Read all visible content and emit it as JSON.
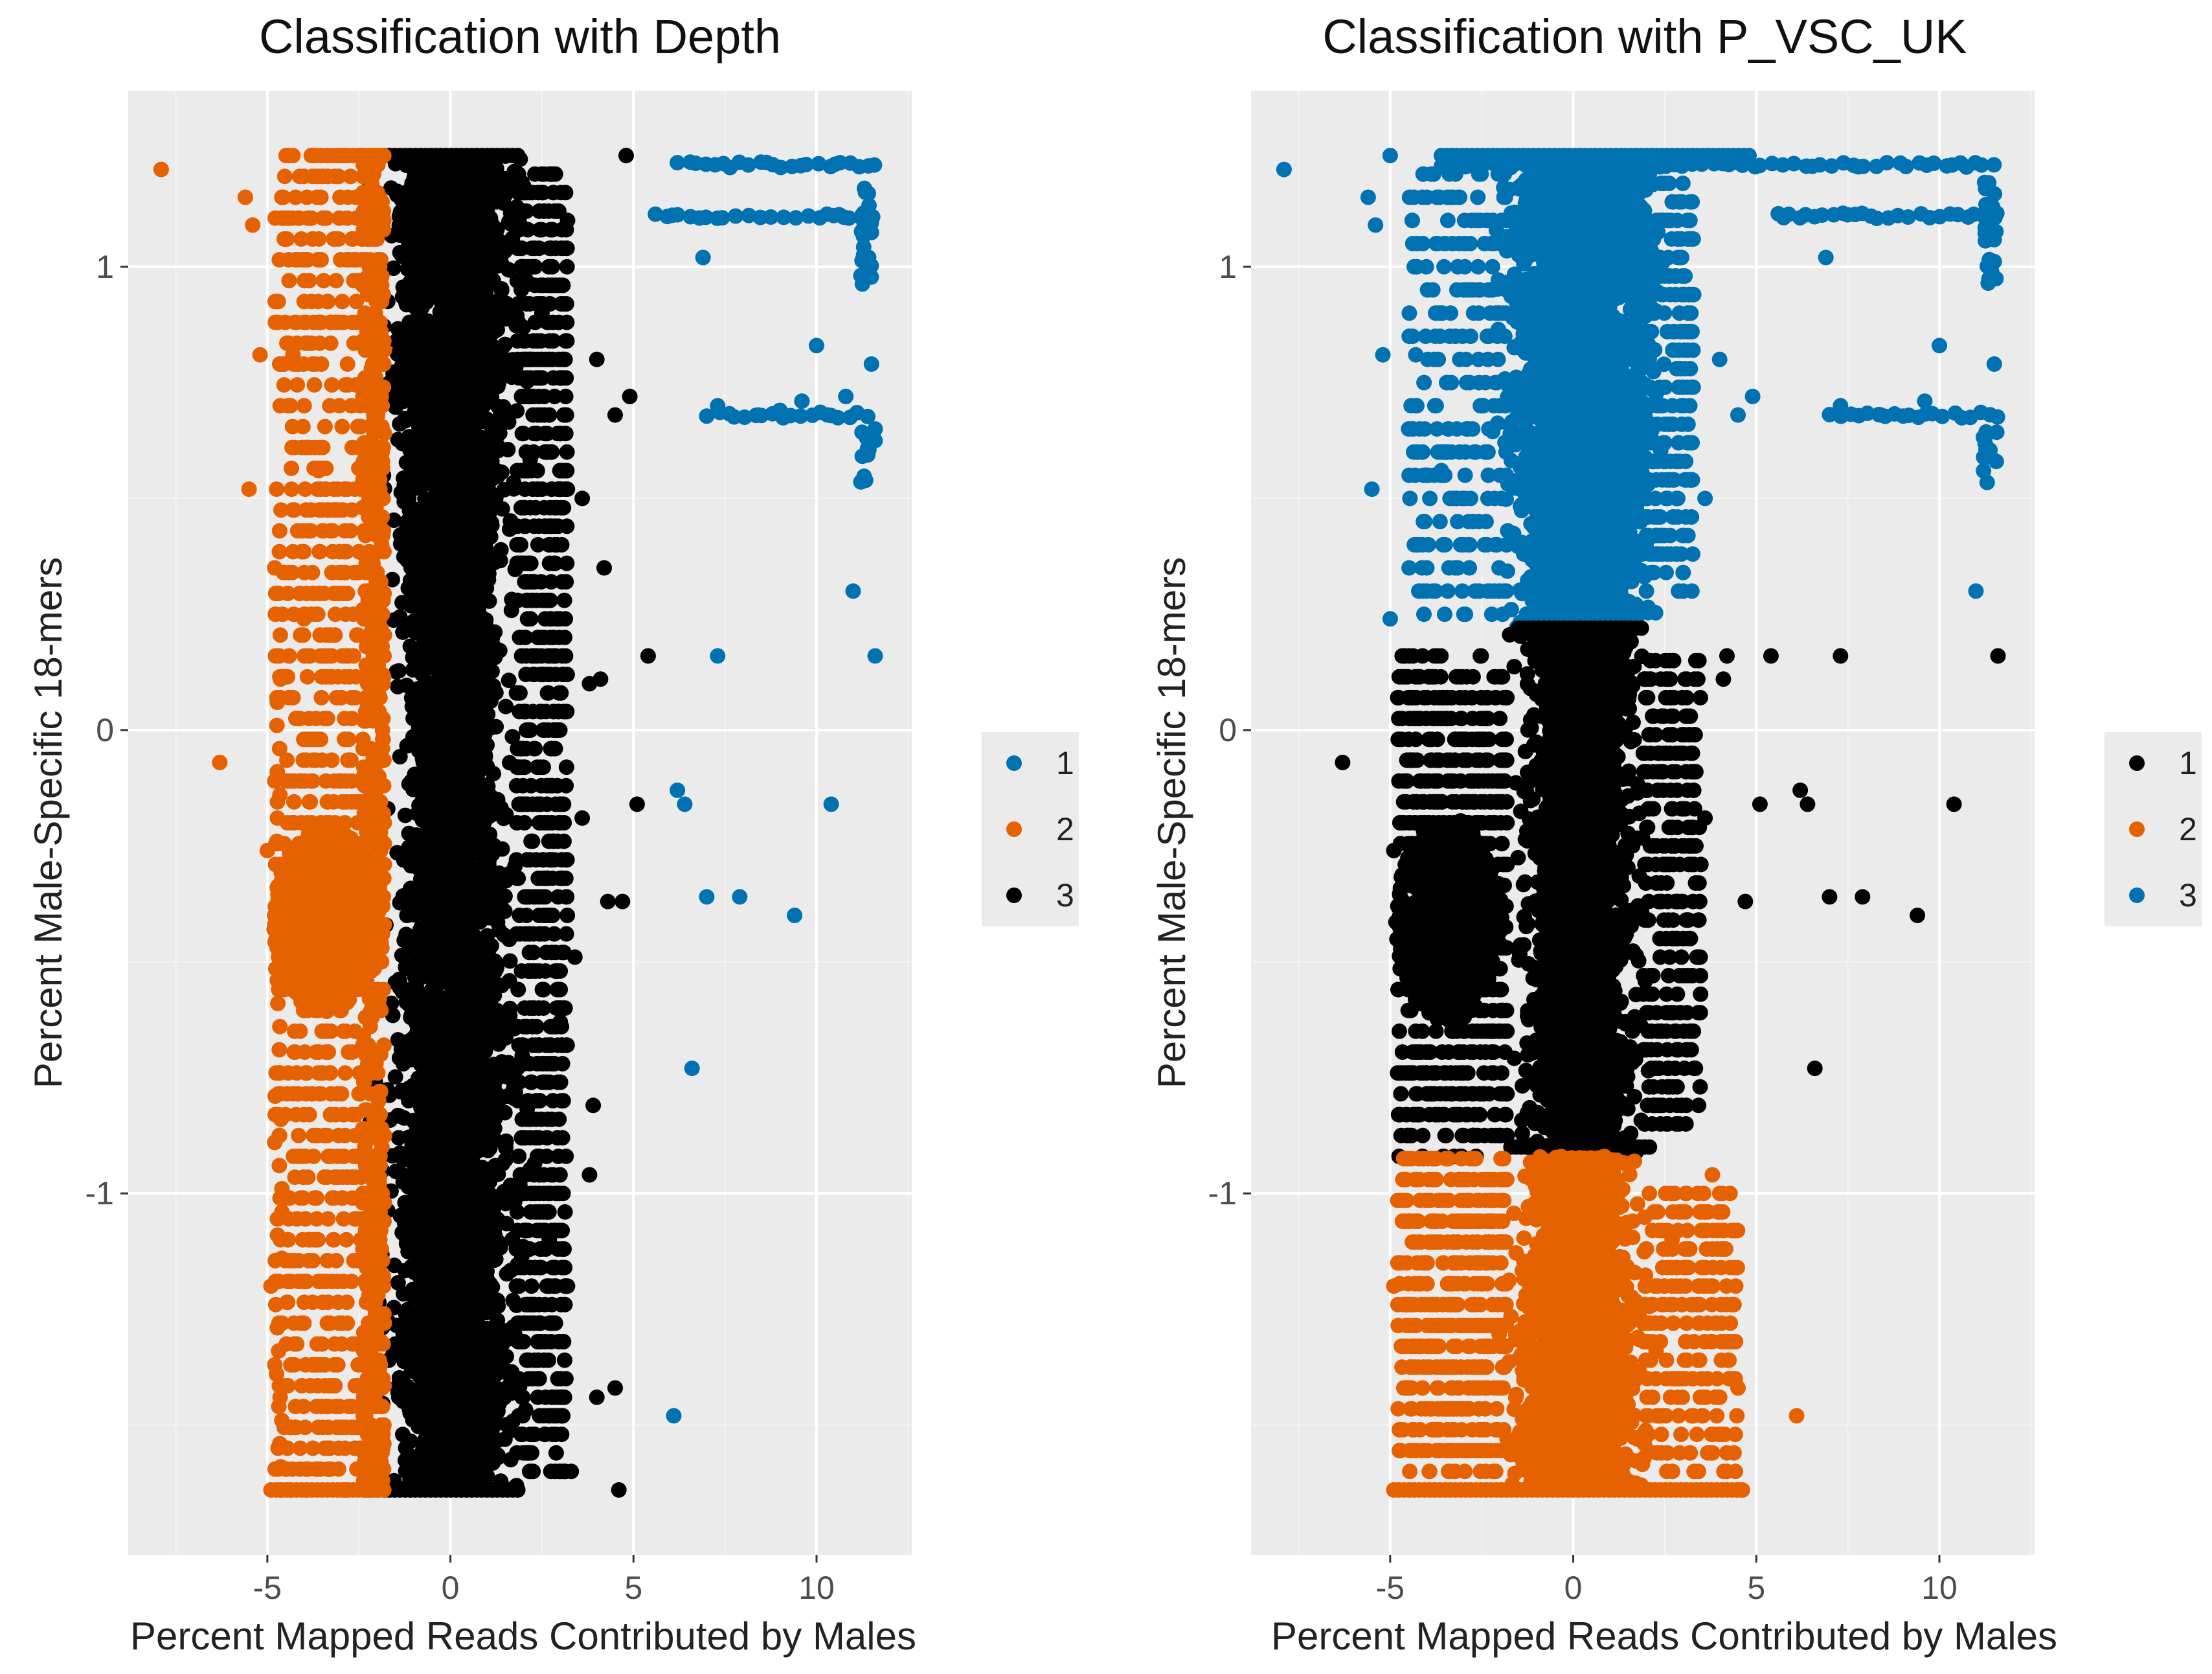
{
  "colors": {
    "cluster_blue": "#0072B2",
    "cluster_orange": "#E66100",
    "cluster_black": "#000000",
    "panel_background": "#EBEBEB",
    "grid_major": "#FFFFFF",
    "grid_minor": "#F4F4F4"
  },
  "chart_data": [
    {
      "type": "scatter",
      "title": "Classification with Depth",
      "xlabel": "Percent Mapped Reads Contributed by Males",
      "ylabel": "Percent Male-Specific 18-mers",
      "xlim": [
        -8.8,
        12.6
      ],
      "ylim": [
        -1.78,
        1.38
      ],
      "x_ticks": [
        -5,
        0,
        5,
        10
      ],
      "x_tick_labels": [
        "-5",
        "0",
        "5",
        "10"
      ],
      "y_ticks": [
        -1,
        0,
        1
      ],
      "y_tick_labels": [
        "-1",
        "0",
        "1"
      ],
      "legend": {
        "position": "right",
        "entries": [
          {
            "label": "1",
            "color": "#0072B2"
          },
          {
            "label": "2",
            "color": "#E66100"
          },
          {
            "label": "3",
            "color": "#000000"
          }
        ]
      },
      "series": [
        {
          "name": "3",
          "color": "#000000",
          "description": "dense central band",
          "x_range": [
            -1.8,
            1.9
          ],
          "y_range": [
            -1.64,
            1.24
          ],
          "outliers": [
            [
              4.8,
              1.24
            ],
            [
              3.2,
              1.1
            ],
            [
              4.0,
              0.8
            ],
            [
              4.9,
              0.72
            ],
            [
              4.5,
              0.68
            ],
            [
              3.6,
              0.5
            ],
            [
              4.2,
              0.35
            ],
            [
              5.4,
              0.16
            ],
            [
              4.1,
              0.11
            ],
            [
              3.8,
              0.1
            ],
            [
              5.1,
              -0.16
            ],
            [
              3.6,
              -0.19
            ],
            [
              4.7,
              -0.37
            ],
            [
              3.4,
              -0.49
            ],
            [
              3.9,
              -0.81
            ],
            [
              3.8,
              -0.96
            ],
            [
              4.5,
              -1.42
            ],
            [
              4.0,
              -1.44
            ],
            [
              4.6,
              -1.64
            ],
            [
              3.3,
              -1.6
            ],
            [
              2.5,
              0.9
            ],
            [
              2.7,
              -1.1
            ],
            [
              3.0,
              -0.63
            ],
            [
              4.3,
              -0.37
            ]
          ]
        },
        {
          "name": "2",
          "color": "#E66100",
          "description": "left band",
          "x_range": [
            -4.8,
            -1.8
          ],
          "y_range": [
            -1.64,
            1.24
          ],
          "cluster_center": [
            -3.4,
            -0.41
          ],
          "outliers": [
            [
              -7.9,
              1.21
            ],
            [
              -5.6,
              1.15
            ],
            [
              -5.4,
              1.09
            ],
            [
              -5.5,
              0.52
            ],
            [
              -3.6,
              0.56
            ],
            [
              -6.3,
              -0.07
            ],
            [
              -5.2,
              0.81
            ],
            [
              -4.3,
              0.81
            ],
            [
              -4.8,
              0.35
            ],
            [
              -4.0,
              0.24
            ],
            [
              -5.0,
              -0.26
            ],
            [
              -4.9,
              -1.2
            ]
          ]
        },
        {
          "name": "1",
          "color": "#0072B2",
          "description": "upper-right streaks and sparse points",
          "points": [
            [
              10.0,
              0.83
            ],
            [
              11.0,
              0.3
            ],
            [
              7.3,
              0.16
            ],
            [
              11.6,
              0.16
            ],
            [
              6.9,
              1.02
            ],
            [
              7.3,
              0.7
            ],
            [
              8.4,
              0.68
            ],
            [
              9.0,
              0.69
            ],
            [
              9.6,
              0.71
            ],
            [
              10.3,
              0.68
            ],
            [
              10.8,
              0.72
            ],
            [
              11.5,
              0.79
            ],
            [
              11.6,
              0.65
            ],
            [
              6.2,
              -0.13
            ],
            [
              6.4,
              -0.16
            ],
            [
              10.4,
              -0.16
            ],
            [
              7.0,
              -0.36
            ],
            [
              7.9,
              -0.36
            ],
            [
              9.4,
              -0.4
            ],
            [
              6.6,
              -0.73
            ],
            [
              6.1,
              -1.48
            ]
          ],
          "streak_rows": [
            {
              "y": 1.22,
              "x_range": [
                6.2,
                11.6
              ]
            },
            {
              "y": 1.11,
              "x_range": [
                5.6,
                11.6
              ]
            },
            {
              "y": 0.68,
              "x_range": [
                7.0,
                11.6
              ]
            }
          ]
        }
      ]
    },
    {
      "type": "scatter",
      "title": "Classification with P_VSC_UK",
      "xlabel": "Percent Mapped Reads Contributed by Males",
      "ylabel": "Percent Male-Specific 18-mers",
      "xlim": [
        -8.8,
        12.6
      ],
      "ylim": [
        -1.78,
        1.38
      ],
      "x_ticks": [
        -5,
        0,
        5,
        10
      ],
      "x_tick_labels": [
        "-5",
        "0",
        "5",
        "10"
      ],
      "y_ticks": [
        -1,
        0,
        1
      ],
      "y_tick_labels": [
        "-1",
        "0",
        "1"
      ],
      "legend": {
        "position": "right",
        "entries": [
          {
            "label": "1",
            "color": "#000000"
          },
          {
            "label": "2",
            "color": "#E66100"
          },
          {
            "label": "3",
            "color": "#0072B2"
          }
        ]
      },
      "series": [
        {
          "name": "3",
          "color": "#0072B2",
          "description": "upper region",
          "y_range": [
            0.22,
            1.24
          ],
          "x_range": [
            -1.8,
            2.2
          ],
          "outliers": [
            [
              -7.9,
              1.21
            ],
            [
              -5.6,
              1.15
            ],
            [
              -5.4,
              1.09
            ],
            [
              -5.0,
              1.24
            ],
            [
              -5.5,
              0.52
            ],
            [
              -3.6,
              0.56
            ],
            [
              -5.2,
              0.81
            ],
            [
              -4.3,
              0.81
            ],
            [
              -5.0,
              0.24
            ],
            [
              -3.0,
              0.4
            ],
            [
              -2.6,
              0.95
            ],
            [
              4.8,
              1.24
            ],
            [
              4.0,
              0.8
            ],
            [
              4.9,
              0.72
            ],
            [
              4.5,
              0.68
            ],
            [
              3.6,
              0.5
            ],
            [
              10.0,
              0.83
            ],
            [
              11.0,
              0.3
            ],
            [
              11.6,
              0.16
            ],
            [
              6.9,
              1.02
            ],
            [
              7.3,
              0.7
            ],
            [
              8.4,
              0.68
            ],
            [
              9.6,
              0.71
            ],
            [
              11.5,
              0.79
            ]
          ],
          "streak_rows": [
            {
              "y": 1.22,
              "x_range": [
                -3.6,
                11.6
              ]
            },
            {
              "y": 1.11,
              "x_range": [
                5.6,
                11.6
              ]
            },
            {
              "y": 0.68,
              "x_range": [
                7.0,
                11.6
              ]
            }
          ]
        },
        {
          "name": "1",
          "color": "#000000",
          "description": "middle region",
          "y_range": [
            -0.92,
            0.22
          ],
          "x_range": [
            -1.6,
            2.0
          ],
          "cluster_center": [
            -3.4,
            -0.41
          ],
          "outliers": [
            [
              -6.3,
              -0.07
            ],
            [
              -4.9,
              -0.26
            ],
            [
              4.2,
              0.16
            ],
            [
              5.4,
              0.16
            ],
            [
              7.3,
              0.16
            ],
            [
              11.6,
              0.16
            ],
            [
              4.1,
              0.11
            ],
            [
              6.2,
              -0.13
            ],
            [
              6.4,
              -0.16
            ],
            [
              10.4,
              -0.16
            ],
            [
              5.1,
              -0.16
            ],
            [
              3.6,
              -0.19
            ],
            [
              4.7,
              -0.37
            ],
            [
              7.0,
              -0.36
            ],
            [
              7.9,
              -0.36
            ],
            [
              9.4,
              -0.4
            ],
            [
              3.4,
              -0.49
            ],
            [
              6.6,
              -0.73
            ]
          ]
        },
        {
          "name": "2",
          "color": "#E66100",
          "description": "lower region",
          "y_range": [
            -1.64,
            -0.92
          ],
          "x_range": [
            -1.8,
            2.0
          ],
          "outliers": [
            [
              -4.9,
              -1.2
            ],
            [
              3.8,
              -0.96
            ],
            [
              4.5,
              -1.42
            ],
            [
              4.0,
              -1.44
            ],
            [
              4.6,
              -1.64
            ],
            [
              6.1,
              -1.48
            ],
            [
              2.7,
              -1.1
            ],
            [
              3.3,
              -1.6
            ]
          ]
        }
      ]
    }
  ]
}
